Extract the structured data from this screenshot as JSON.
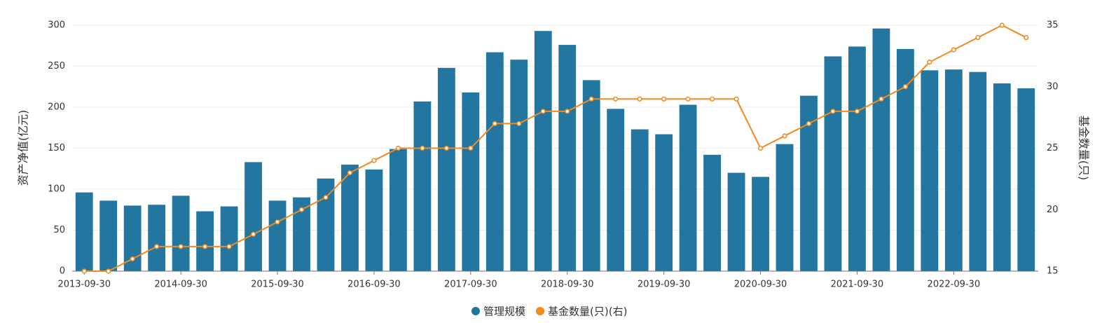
{
  "chart_data": {
    "type": "bar",
    "categories": [
      "2013-09-30",
      null,
      null,
      null,
      "2014-09-30",
      null,
      null,
      null,
      "2015-09-30",
      null,
      null,
      null,
      "2016-09-30",
      null,
      null,
      null,
      "2017-09-30",
      null,
      null,
      null,
      "2018-09-30",
      null,
      null,
      null,
      "2019-09-30",
      null,
      null,
      null,
      "2020-09-30",
      null,
      null,
      null,
      "2021-09-30",
      null,
      null,
      null,
      "2022-09-30",
      null,
      null,
      null
    ],
    "series": [
      {
        "name": "管理规模",
        "type": "bar",
        "color": "#23769f",
        "values": [
          96,
          86,
          80,
          81,
          92,
          73,
          79,
          133,
          86,
          90,
          113,
          130,
          124,
          149,
          207,
          248,
          218,
          267,
          258,
          293,
          276,
          233,
          198,
          173,
          167,
          203,
          142,
          120,
          115,
          155,
          214,
          262,
          274,
          296,
          271,
          245,
          246,
          243,
          229,
          223
        ]
      },
      {
        "name": "基金数量(只)(右)",
        "type": "line",
        "axis": "y2",
        "color": "#f28a1f",
        "values": [
          15,
          15,
          16,
          17,
          17,
          17,
          17,
          18,
          19,
          20,
          21,
          23,
          24,
          25,
          25,
          25,
          25,
          27,
          27,
          28,
          28,
          29,
          29,
          29,
          29,
          29,
          29,
          29,
          25,
          26,
          27,
          28,
          28,
          29,
          30,
          32,
          33,
          34,
          35,
          34
        ]
      }
    ],
    "ylabel": "资产净值(亿元)",
    "y2label": "基金数量(只)",
    "ylim": [
      0,
      300
    ],
    "yticks": [
      0,
      50,
      100,
      150,
      200,
      250,
      300
    ],
    "y2lim": [
      15,
      35
    ],
    "y2ticks": [
      15,
      20,
      25,
      30,
      35
    ],
    "grid": true,
    "legend": "bottom"
  }
}
